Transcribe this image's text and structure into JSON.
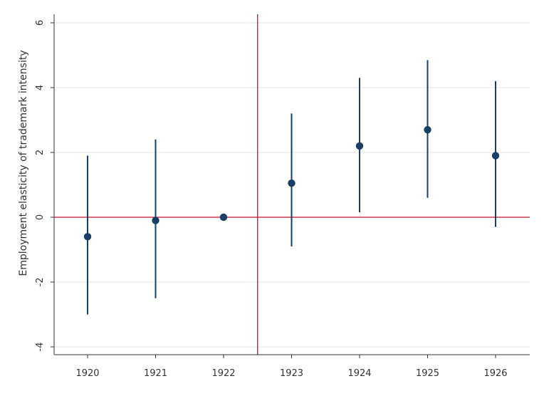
{
  "chart_data": {
    "type": "scatter",
    "title": "",
    "xlabel": "",
    "ylabel": "Employment elasticity of trademark intensity",
    "categories": [
      "1920",
      "1921",
      "1922",
      "1923",
      "1924",
      "1925",
      "1926"
    ],
    "series": [
      {
        "points": [
          {
            "x": "1920",
            "y": -0.6,
            "ci_low": -3.0,
            "ci_high": 1.9
          },
          {
            "x": "1921",
            "y": -0.1,
            "ci_low": -2.5,
            "ci_high": 2.4
          },
          {
            "x": "1922",
            "y": 0.0,
            "ci_low": 0.0,
            "ci_high": 0.0
          },
          {
            "x": "1923",
            "y": 1.05,
            "ci_low": -0.9,
            "ci_high": 3.2
          },
          {
            "x": "1924",
            "y": 2.2,
            "ci_low": 0.15,
            "ci_high": 4.3
          },
          {
            "x": "1925",
            "y": 2.7,
            "ci_low": 0.6,
            "ci_high": 4.85
          },
          {
            "x": "1926",
            "y": 1.9,
            "ci_low": -0.3,
            "ci_high": 4.2
          }
        ]
      }
    ],
    "yticks": [
      "6",
      "4",
      "2",
      "0",
      "-2",
      "-4"
    ],
    "ytick_values": [
      6,
      4,
      2,
      0,
      -2,
      -4
    ],
    "ylim": [
      -4.3,
      6.3
    ],
    "reference_line_y": 0,
    "reference_line_between": [
      "1922",
      "1923"
    ],
    "grid": true,
    "colors": {
      "marker": "#1a3f66",
      "errorbar": "#1a3f66",
      "reference": "#c8102e",
      "grid": "#e6e6e6",
      "axis": "#333333"
    }
  }
}
